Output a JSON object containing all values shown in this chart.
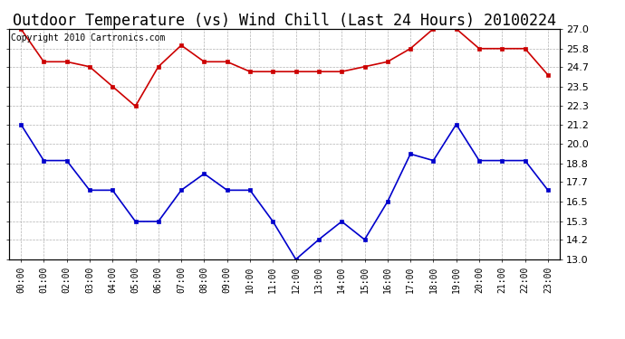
{
  "title": "Outdoor Temperature (vs) Wind Chill (Last 24 Hours) 20100224",
  "copyright": "Copyright 2010 Cartronics.com",
  "x_labels": [
    "00:00",
    "01:00",
    "02:00",
    "03:00",
    "04:00",
    "05:00",
    "06:00",
    "07:00",
    "08:00",
    "09:00",
    "10:00",
    "11:00",
    "12:00",
    "13:00",
    "14:00",
    "15:00",
    "16:00",
    "17:00",
    "18:00",
    "19:00",
    "20:00",
    "21:00",
    "22:00",
    "23:00"
  ],
  "red_data": [
    27.0,
    25.0,
    25.0,
    24.7,
    23.5,
    22.3,
    24.7,
    26.0,
    25.0,
    25.0,
    24.4,
    24.4,
    24.4,
    24.4,
    24.4,
    24.7,
    25.0,
    25.8,
    27.0,
    27.0,
    25.8,
    25.8,
    25.8,
    24.2
  ],
  "blue_data": [
    21.2,
    19.0,
    19.0,
    17.2,
    17.2,
    15.3,
    15.3,
    17.2,
    18.2,
    17.2,
    17.2,
    15.3,
    13.0,
    14.2,
    15.3,
    14.2,
    16.5,
    19.4,
    19.0,
    21.2,
    19.0,
    19.0,
    19.0,
    17.2
  ],
  "ylim": [
    13.0,
    27.0
  ],
  "yticks": [
    13.0,
    14.2,
    15.3,
    16.5,
    17.7,
    18.8,
    20.0,
    21.2,
    22.3,
    23.5,
    24.7,
    25.8,
    27.0
  ],
  "red_color": "#cc0000",
  "blue_color": "#0000cc",
  "grid_color": "#aaaaaa",
  "bg_color": "#ffffff",
  "title_fontsize": 12,
  "copyright_fontsize": 7,
  "tick_fontsize": 8,
  "xtick_fontsize": 7
}
